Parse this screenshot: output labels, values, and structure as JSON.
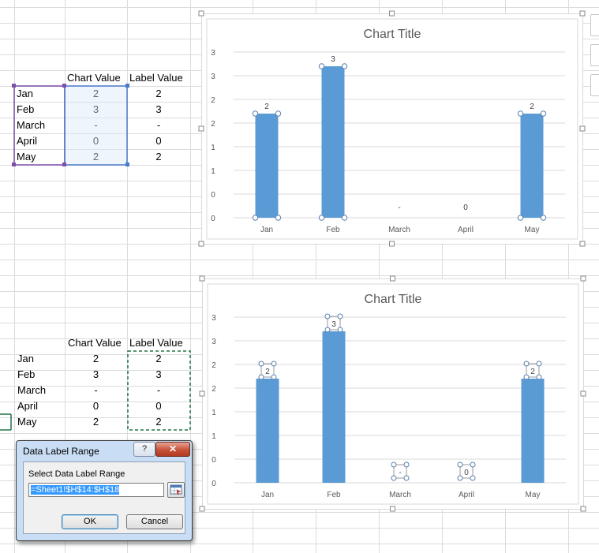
{
  "sheet": {
    "header_chart_value": "Chart Value",
    "header_label_value": "Label Value",
    "rows": [
      {
        "month": "Jan",
        "chart": "2",
        "label": "2"
      },
      {
        "month": "Feb",
        "chart": "3",
        "label": "3"
      },
      {
        "month": "March",
        "chart": "-",
        "label": "-"
      },
      {
        "month": "April",
        "chart": "0",
        "label": "0"
      },
      {
        "month": "May",
        "chart": "2",
        "label": "2"
      }
    ]
  },
  "chart_data": [
    {
      "type": "bar",
      "title": "Chart Title",
      "categories": [
        "Jan",
        "Feb",
        "March",
        "April",
        "May"
      ],
      "values": [
        2.2,
        3.2,
        null,
        0,
        2.2
      ],
      "data_labels": [
        "2",
        "3",
        "-",
        "0",
        "2"
      ],
      "y_tick_labels": [
        "0",
        "0",
        "1",
        "1",
        "2",
        "2",
        "3",
        "3"
      ],
      "ylim": [
        0,
        3.5
      ],
      "grid": true,
      "bar_color": "#5b9bd5"
    },
    {
      "type": "bar",
      "title": "Chart Title",
      "categories": [
        "Jan",
        "Feb",
        "March",
        "April",
        "May"
      ],
      "values": [
        2.2,
        3.2,
        null,
        0,
        2.2
      ],
      "data_labels": [
        "2",
        "3",
        "-",
        "0",
        "2"
      ],
      "y_tick_labels": [
        "0",
        "0",
        "1",
        "1",
        "2",
        "2",
        "3",
        "3"
      ],
      "ylim": [
        0,
        3.5
      ],
      "grid": true,
      "bar_color": "#5b9bd5"
    }
  ],
  "dialog": {
    "title": "Data Label Range",
    "help_label": "?",
    "close_label": "✕",
    "field_label": "Select Data Label Range",
    "field_value": "=Sheet1!$H$14:$H$18",
    "ok_label": "OK",
    "cancel_label": "Cancel"
  }
}
